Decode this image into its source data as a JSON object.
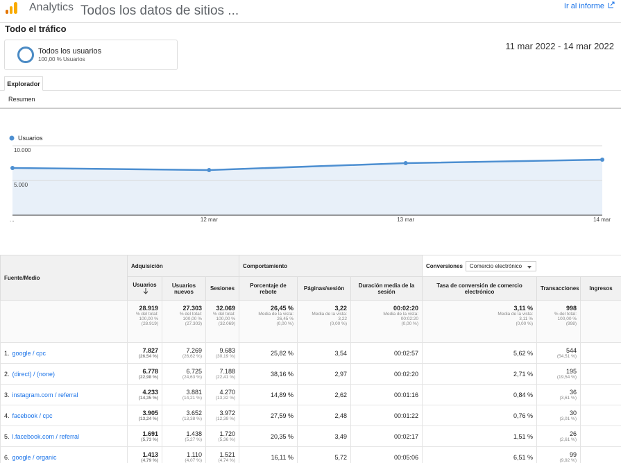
{
  "header": {
    "product": "Analytics",
    "property": "Todos los datos de sitios ...",
    "report_link": "Ir al informe"
  },
  "page_title": "Todo el tráfico",
  "segment": {
    "name": "Todos los usuarios",
    "detail": "100,00 % Usuarios"
  },
  "date_range": "11 mar 2022 - 14 mar 2022",
  "tabs": {
    "active": "Explorador",
    "sub": "Resumen"
  },
  "chart_data": {
    "type": "line",
    "categories": [
      "...",
      "12 mar",
      "13 mar",
      "14 mar"
    ],
    "series": [
      {
        "name": "Usuarios",
        "color": "#4d8fd1",
        "values": [
          6800,
          6500,
          7500,
          8000
        ]
      }
    ],
    "ylim": [
      0,
      11000
    ],
    "yticks": [
      {
        "value": 5000,
        "label": "5.000"
      },
      {
        "value": 10000,
        "label": "10.000"
      }
    ],
    "grid": true,
    "area": true
  },
  "table": {
    "groups": {
      "source": "Fuente/Medio",
      "acquisition": "Adquisición",
      "behavior": "Comportamiento",
      "conversions": "Conversiones",
      "conversions_select": "Comercio electrónico"
    },
    "columns": [
      "Usuarios",
      "Usuarios nuevos",
      "Sesiones",
      "Porcentaje de rebote",
      "Páginas/sesión",
      "Duración media de la sesión",
      "Tasa de conversión de comercio electrónico",
      "Transacciones",
      "Ingresos"
    ],
    "totals": [
      [
        "28.919",
        "% del total:",
        "100,00 %",
        "(28.919)"
      ],
      [
        "27.303",
        "% del total:",
        "100,00 %",
        "(27.303)"
      ],
      [
        "32.069",
        "% del total:",
        "100,00 %",
        "(32.069)"
      ],
      [
        "26,45 %",
        "Media de la vista:",
        "26,45 %",
        "(0,00 %)"
      ],
      [
        "3,22",
        "Media de la vista:",
        "3,22",
        "(0,00 %)"
      ],
      [
        "00:02:20",
        "Media de la vista:",
        "00:02:20",
        "(0,00 %)"
      ],
      [
        "3,11 %",
        "Media de la vista:",
        "3,11 %",
        "(0,00 %)"
      ],
      [
        "998",
        "% del total:",
        "100,00 %",
        "(998)"
      ]
    ],
    "rows": [
      {
        "index": "1.",
        "source": "google / cpc",
        "users": "7.827",
        "users_pct": "(26,54 %)",
        "new_users": "7.269",
        "new_users_pct": "(26,62 %)",
        "sessions": "9.683",
        "sessions_pct": "(30,19 %)",
        "bounce": "25,82 %",
        "pages": "3,54",
        "duration": "00:02:57",
        "conversion": "5,62 %",
        "transactions": "544",
        "transactions_pct": "(54,51 %)"
      },
      {
        "index": "2.",
        "source": "(direct) / (none)",
        "users": "6.778",
        "users_pct": "(22,98 %)",
        "new_users": "6.725",
        "new_users_pct": "(24,63 %)",
        "sessions": "7.188",
        "sessions_pct": "(22,41 %)",
        "bounce": "38,16 %",
        "pages": "2,97",
        "duration": "00:02:20",
        "conversion": "2,71 %",
        "transactions": "195",
        "transactions_pct": "(19,54 %)"
      },
      {
        "index": "3.",
        "source": "instagram.com / referral",
        "users": "4.233",
        "users_pct": "(14,35 %)",
        "new_users": "3.881",
        "new_users_pct": "(14,21 %)",
        "sessions": "4.270",
        "sessions_pct": "(13,32 %)",
        "bounce": "14,89 %",
        "pages": "2,62",
        "duration": "00:01:16",
        "conversion": "0,84 %",
        "transactions": "36",
        "transactions_pct": "(3,61 %)"
      },
      {
        "index": "4.",
        "source": "facebook / cpc",
        "users": "3.905",
        "users_pct": "(13,24 %)",
        "new_users": "3.652",
        "new_users_pct": "(13,38 %)",
        "sessions": "3.972",
        "sessions_pct": "(12,39 %)",
        "bounce": "27,59 %",
        "pages": "2,48",
        "duration": "00:01:22",
        "conversion": "0,76 %",
        "transactions": "30",
        "transactions_pct": "(3,01 %)"
      },
      {
        "index": "5.",
        "source": "l.facebook.com / referral",
        "users": "1.691",
        "users_pct": "(5,73 %)",
        "new_users": "1.438",
        "new_users_pct": "(5,27 %)",
        "sessions": "1.720",
        "sessions_pct": "(5,36 %)",
        "bounce": "20,35 %",
        "pages": "3,49",
        "duration": "00:02:17",
        "conversion": "1,51 %",
        "transactions": "26",
        "transactions_pct": "(2,61 %)"
      },
      {
        "index": "6.",
        "source": "google / organic",
        "users": "1.413",
        "users_pct": "(4,79 %)",
        "new_users": "1.110",
        "new_users_pct": "(4,07 %)",
        "sessions": "1.521",
        "sessions_pct": "(4,74 %)",
        "bounce": "16,11 %",
        "pages": "5,72",
        "duration": "00:05:06",
        "conversion": "6,51 %",
        "transactions": "99",
        "transactions_pct": "(9,92 %)"
      }
    ]
  }
}
